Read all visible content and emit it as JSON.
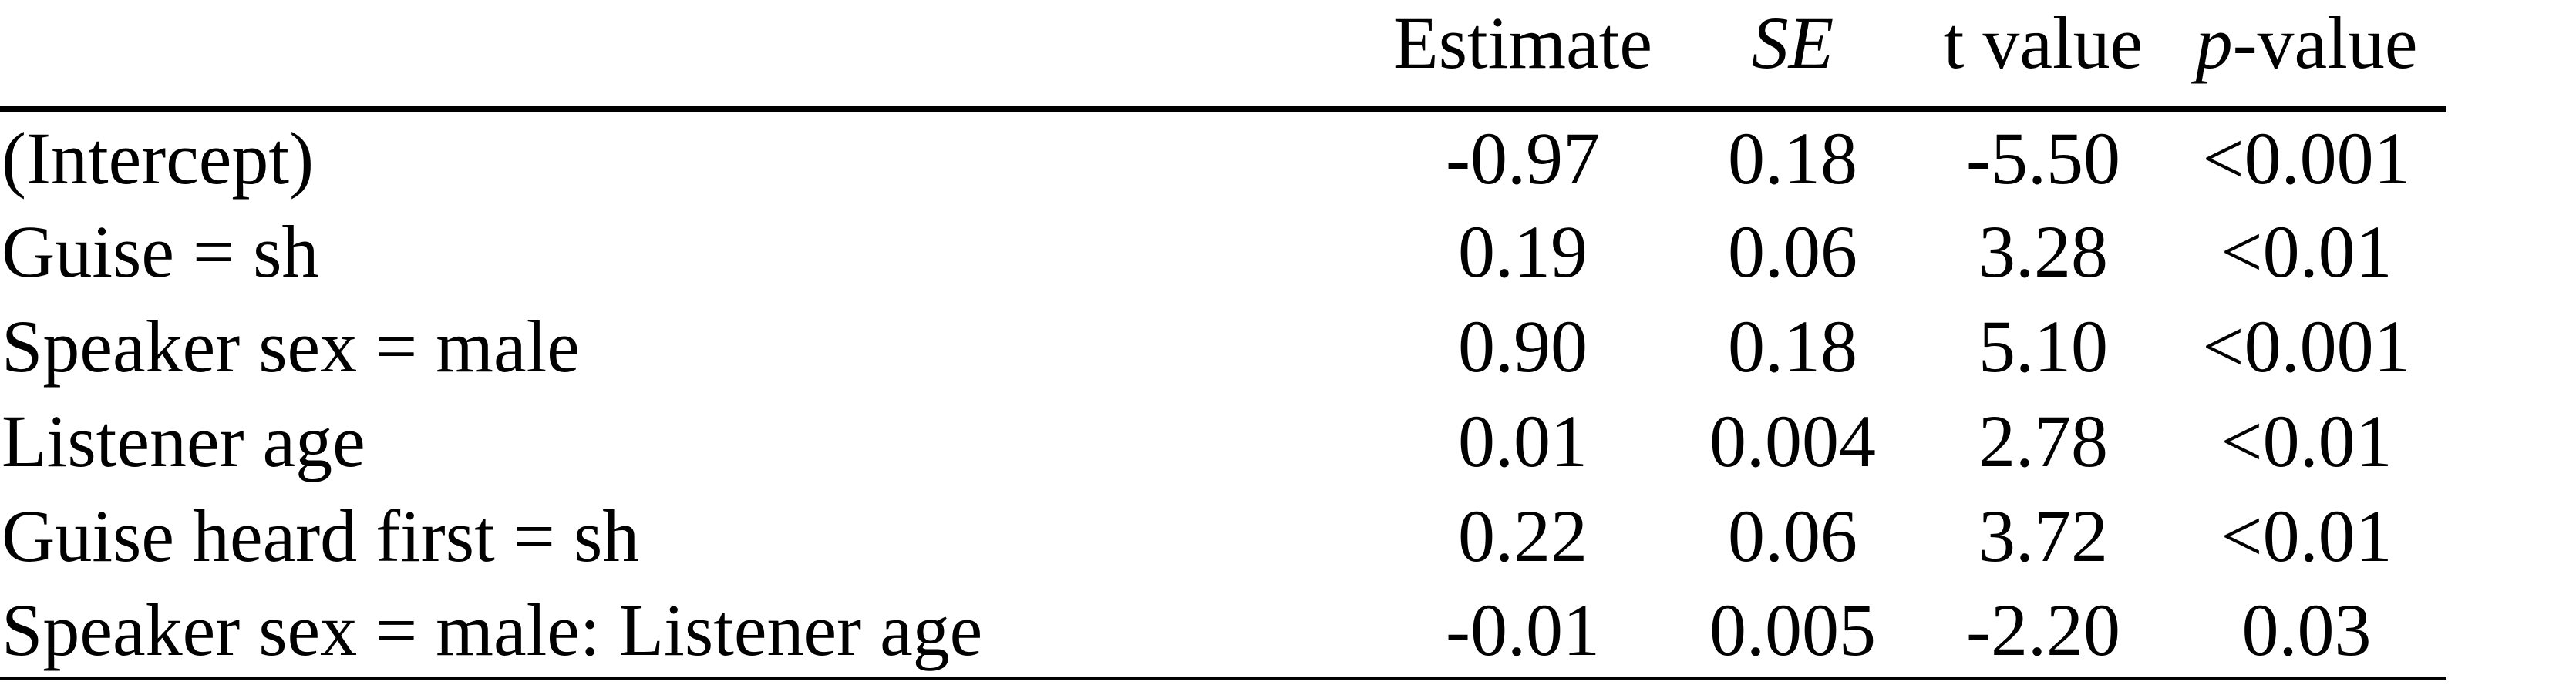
{
  "page": {
    "background_color": "#ffffff",
    "text_color": "#000000",
    "rule_color": "#000000"
  },
  "table": {
    "headers": {
      "label": "",
      "estimate": "Estimate",
      "se": "SE",
      "t_value": "t value",
      "p_italic": "p",
      "p_rest": "-value"
    },
    "rows": [
      {
        "label": "(Intercept)",
        "estimate": "-0.97",
        "se": "0.18",
        "t_value": "-5.50",
        "p_value": "<0.001"
      },
      {
        "label": "Guise = sh",
        "estimate": "0.19",
        "se": "0.06",
        "t_value": "3.28",
        "p_value": "<0.01"
      },
      {
        "label": "Speaker sex = male",
        "estimate": "0.90",
        "se": "0.18",
        "t_value": "5.10",
        "p_value": "<0.001"
      },
      {
        "label": "Listener age",
        "estimate": "0.01",
        "se": "0.004",
        "t_value": "2.78",
        "p_value": "<0.01"
      },
      {
        "label": "Guise heard first = sh",
        "estimate": "0.22",
        "se": "0.06",
        "t_value": "3.72",
        "p_value": "<0.01"
      },
      {
        "label": "Speaker sex = male: Listener age",
        "estimate": "-0.01",
        "se": "0.005",
        "t_value": "-2.20",
        "p_value": "0.03"
      }
    ]
  }
}
